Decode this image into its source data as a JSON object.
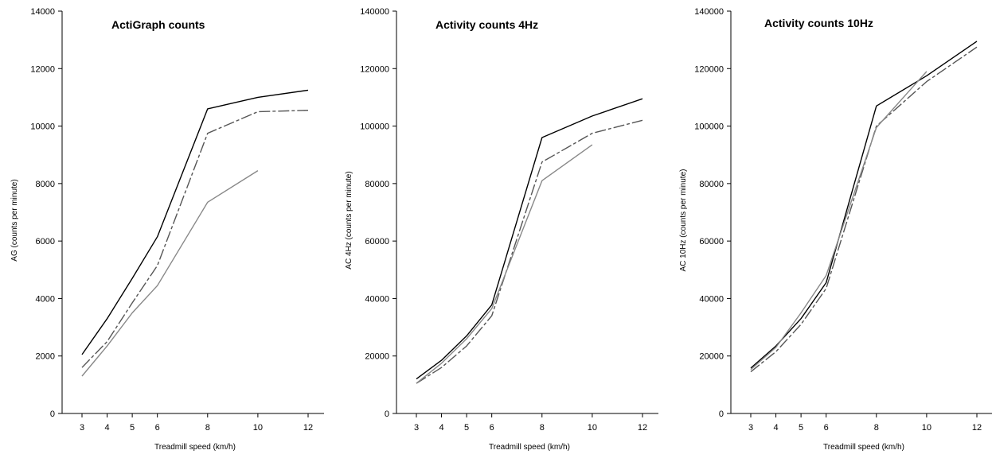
{
  "chart_data": [
    {
      "type": "line",
      "title": "ActiGraph counts",
      "xlabel": "Treadmill speed (km/h)",
      "ylabel": "AG (counts per minute)",
      "categories": [
        "3",
        "4",
        "5",
        "6",
        "8",
        "10",
        "12"
      ],
      "ylim": [
        0,
        14000
      ],
      "yticks": [
        "0",
        "2000",
        "4000",
        "6000",
        "8000",
        "10000",
        "12000",
        "14000"
      ],
      "grid": false,
      "series": [
        {
          "color": "#000000",
          "dash": "solid",
          "values": [
            2050,
            3300,
            4700,
            6150,
            10600,
            11000,
            11250
          ]
        },
        {
          "color": "#555555",
          "dash": "dashed",
          "values": [
            1600,
            2500,
            3850,
            5150,
            9750,
            10500,
            10550
          ]
        },
        {
          "color": "#888888",
          "dash": "solid",
          "values": [
            1300,
            2350,
            3500,
            4450,
            7350,
            8450,
            null
          ]
        }
      ]
    },
    {
      "type": "line",
      "title": "Activity counts 4Hz",
      "xlabel": "Treadmill speed (km/h)",
      "ylabel": "AC 4Hz (counts per minute)",
      "categories": [
        "3",
        "4",
        "5",
        "6",
        "8",
        "10",
        "12"
      ],
      "ylim": [
        0,
        140000
      ],
      "yticks": [
        "0",
        "20000",
        "40000",
        "60000",
        "80000",
        "100000",
        "120000",
        "140000"
      ],
      "grid": false,
      "series": [
        {
          "color": "#000000",
          "dash": "solid",
          "values": [
            12000,
            18500,
            27000,
            37800,
            96000,
            103500,
            109500
          ]
        },
        {
          "color": "#555555",
          "dash": "dashed",
          "values": [
            10500,
            16000,
            23500,
            34000,
            87500,
            97500,
            102000
          ]
        },
        {
          "color": "#888888",
          "dash": "solid",
          "values": [
            10500,
            17500,
            26000,
            36500,
            81000,
            93500,
            null
          ]
        }
      ]
    },
    {
      "type": "line",
      "title": "Activity counts 10Hz",
      "xlabel": "Treadmill speed (km/h)",
      "ylabel": "AC 10Hz (counts per minute)",
      "categories": [
        "3",
        "4",
        "5",
        "6",
        "8",
        "10",
        "12"
      ],
      "ylim": [
        0,
        140000
      ],
      "yticks": [
        "0",
        "20000",
        "40000",
        "60000",
        "80000",
        "100000",
        "120000",
        "140000"
      ],
      "grid": false,
      "series": [
        {
          "color": "#000000",
          "dash": "solid",
          "values": [
            15800,
            23500,
            33000,
            45500,
            107000,
            117500,
            129500
          ]
        },
        {
          "color": "#555555",
          "dash": "dashed",
          "values": [
            14500,
            21500,
            31000,
            43500,
            100000,
            115500,
            127500
          ]
        },
        {
          "color": "#888888",
          "dash": "solid",
          "values": [
            15300,
            23000,
            35000,
            48000,
            99500,
            119000,
            null
          ]
        }
      ]
    }
  ]
}
